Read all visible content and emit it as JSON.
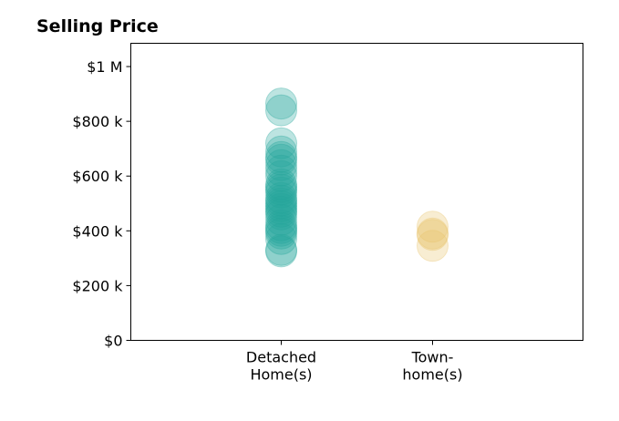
{
  "chart_data": {
    "type": "scatter",
    "title": "Selling Price",
    "xlabel": "",
    "ylabel": "",
    "ylim": [
      0,
      1085000
    ],
    "categories": [
      [
        "Detached",
        "Home(s)"
      ],
      [
        "Town-",
        "home(s)"
      ]
    ],
    "y_ticks": [
      {
        "value": 0,
        "label": "$0"
      },
      {
        "value": 200000,
        "label": "$200 k"
      },
      {
        "value": 400000,
        "label": "$400 k"
      },
      {
        "value": 600000,
        "label": "$600 k"
      },
      {
        "value": 800000,
        "label": "$800 k"
      },
      {
        "value": 1000000,
        "label": "$1 M"
      }
    ],
    "grid": false,
    "legend": "none",
    "series": [
      {
        "category_index": 0,
        "color": "#26a69a",
        "values": [
          325000,
          330000,
          370000,
          390000,
          400000,
          410000,
          420000,
          440000,
          460000,
          470000,
          480000,
          490000,
          500000,
          510000,
          520000,
          540000,
          550000,
          560000,
          570000,
          600000,
          620000,
          640000,
          660000,
          670000,
          690000,
          720000,
          840000,
          865000
        ]
      },
      {
        "category_index": 1,
        "color": "#e8c36a",
        "values": [
          345000,
          385000,
          390000,
          415000
        ]
      }
    ]
  }
}
